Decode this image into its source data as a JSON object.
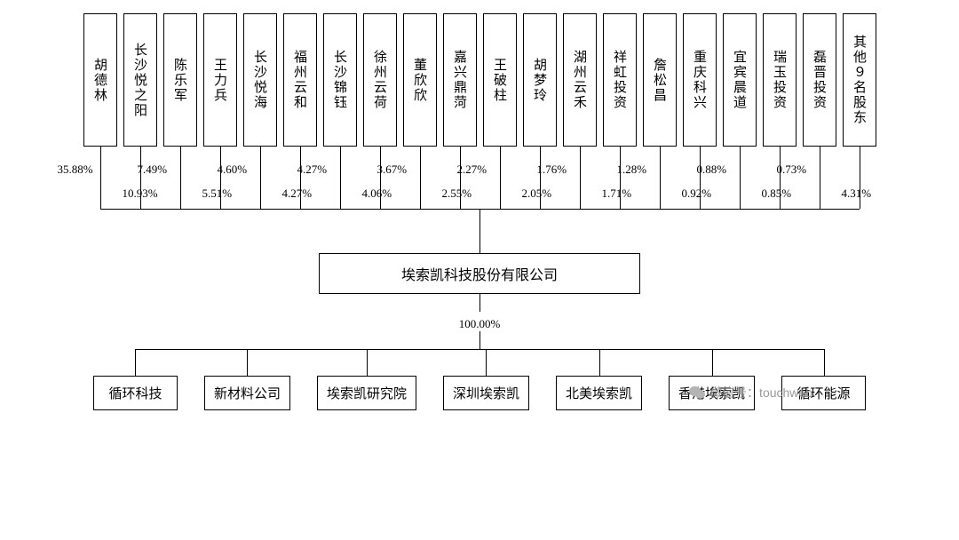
{
  "background_color": "#ffffff",
  "border_color": "#000000",
  "text_color": "#000000",
  "font_family": "SimSun",
  "font_size_box": 15,
  "font_size_pct": 13,
  "font_size_mid": 16,
  "shareholders": [
    {
      "name": "胡德林",
      "pct": "35.88%",
      "row": "top"
    },
    {
      "name": "长沙悦之阳",
      "pct": "10.93%",
      "row": "bot"
    },
    {
      "name": "陈乐军",
      "pct": "7.49%",
      "row": "top"
    },
    {
      "name": "王力兵",
      "pct": "5.51%",
      "row": "bot"
    },
    {
      "name": "长沙悦海",
      "pct": "4.60%",
      "row": "top"
    },
    {
      "name": "福州云和",
      "pct": "4.27%",
      "row": "bot"
    },
    {
      "name": "长沙锦钰",
      "pct": "4.27%",
      "row": "top"
    },
    {
      "name": "徐州云荷",
      "pct": "4.06%",
      "row": "bot"
    },
    {
      "name": "董欣欣",
      "pct": "3.67%",
      "row": "top"
    },
    {
      "name": "嘉兴鼎菏",
      "pct": "2.55%",
      "row": "bot"
    },
    {
      "name": "王破柱",
      "pct": "2.27%",
      "row": "top"
    },
    {
      "name": "胡梦玲",
      "pct": "2.05%",
      "row": "bot"
    },
    {
      "name": "湖州云禾",
      "pct": "1.76%",
      "row": "top"
    },
    {
      "name": "祥虹投资",
      "pct": "1.71%",
      "row": "bot"
    },
    {
      "name": "詹松昌",
      "pct": "1.28%",
      "row": "top"
    },
    {
      "name": "重庆科兴",
      "pct": "0.92%",
      "row": "bot"
    },
    {
      "name": "宜宾晨道",
      "pct": "0.88%",
      "row": "top"
    },
    {
      "name": "瑞玉投资",
      "pct": "0.85%",
      "row": "bot"
    },
    {
      "name": "磊晋投资",
      "pct": "0.73%",
      "row": "top"
    },
    {
      "name": "其他９名股东",
      "pct": "4.31%",
      "row": "bot"
    }
  ],
  "company": "埃索凯科技股份有限公司",
  "ownership_pct": "100.00%",
  "subsidiaries": [
    "循环科技",
    "新材料公司",
    "埃索凯研究院",
    "深圳埃索凯",
    "北美埃索凯",
    "香港埃索凯",
    "循环能源"
  ],
  "watermark": {
    "icon": "wechat-icon",
    "text": "微信号：touchweb",
    "color": "#999999"
  },
  "layout": {
    "top_box_width": 38,
    "top_box_height": 150,
    "top_gap": 7,
    "mid_gap": 20
  }
}
